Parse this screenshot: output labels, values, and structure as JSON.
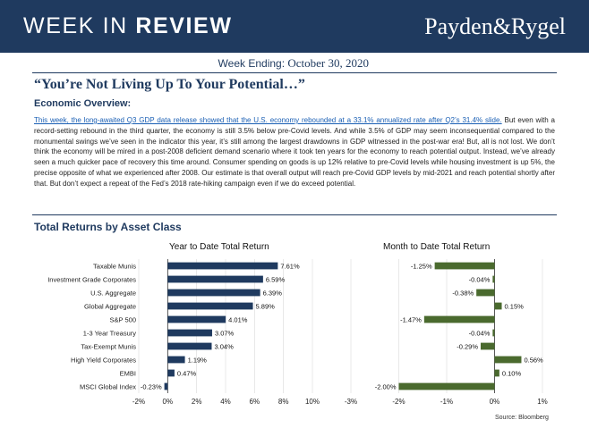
{
  "header": {
    "title_light": "WEEK IN ",
    "title_bold": "REVIEW",
    "brand": "Payden&Rygel"
  },
  "week_ending": {
    "label": "Week Ending: ",
    "date": "October 30, 2020"
  },
  "headline": "“You’re Not Living Up To Your Potential…”",
  "overview": {
    "heading": "Economic Overview:",
    "lead": "This week, the long-awaited Q3 GDP data release showed that the U.S. economy rebounded at a 33.1% annualized rate after Q2’s 31.4% slide.",
    "body": "But even with a record-setting rebound in the third quarter, the economy is still 3.5% below pre-Covid levels. And while 3.5% of GDP may seem inconsequential compared to the monumental swings we’ve seen in the indicator this year, it’s still among the largest drawdowns in GDP witnessed in the post-war era! But, all is not lost. We don’t think the economy will be mired in a post-2008 deficient demand scenario where it took ten years for the economy to reach potential output. Instead, we’ve already seen a much quicker pace of recovery this time around. Consumer spending on goods is up 12% relative to pre-Covid levels while housing investment is up 5%, the precise opposite of what we experienced after 2008. Our estimate is that overall output will reach pre-Covid GDP levels by mid-2021 and reach potential shortly after that. But don’t expect a repeat of the Fed’s 2018 rate-hiking campaign even if we do exceed potential."
  },
  "returns_heading": "Total Returns by Asset Class",
  "source": "Source: Bloomberg",
  "colors": {
    "navy": "#1f3a5f",
    "green": "#4a6a2e"
  },
  "chart_data": [
    {
      "type": "bar",
      "orientation": "horizontal",
      "title": "Year to Date Total Return",
      "categories": [
        "Taxable Munis",
        "Investment Grade Corporates",
        "U.S. Aggregate",
        "Global Aggregate",
        "S&P 500",
        "1-3 Year Treasury",
        "Tax-Exempt Munis",
        "High Yield Corporates",
        "EMBI",
        "MSCI Global Index"
      ],
      "values": [
        7.61,
        6.59,
        6.39,
        5.89,
        4.01,
        3.07,
        3.04,
        1.19,
        0.47,
        -0.23
      ],
      "labels": [
        "7.61%",
        "6.59%",
        "6.39%",
        "5.89%",
        "4.01%",
        "3.07%",
        "3.04%",
        "1.19%",
        "0.47%",
        "-0.23%"
      ],
      "xlim": [
        -2,
        10
      ],
      "ticks": [
        "-2%",
        "0%",
        "2%",
        "4%",
        "6%",
        "8%",
        "10%"
      ],
      "color": "#1f3a5f"
    },
    {
      "type": "bar",
      "orientation": "horizontal",
      "title": "Month to Date Total Return",
      "categories": [
        "Taxable Munis",
        "Investment Grade Corporates",
        "U.S. Aggregate",
        "Global Aggregate",
        "S&P 500",
        "1-3 Year Treasury",
        "Tax-Exempt Munis",
        "High Yield Corporates",
        "EMBI",
        "MSCI Global Index"
      ],
      "values": [
        -1.25,
        -0.04,
        -0.38,
        0.15,
        -1.47,
        -0.04,
        -0.29,
        0.56,
        0.1,
        -2.0
      ],
      "labels": [
        "-1.25%",
        "-0.04%",
        "-0.38%",
        "0.15%",
        "-1.47%",
        "-0.04%",
        "-0.29%",
        "0.56%",
        "0.10%",
        "-2.00%"
      ],
      "xlim": [
        -3,
        1
      ],
      "ticks": [
        "-3%",
        "-2%",
        "-1%",
        "0%",
        "1%"
      ],
      "color": "#4a6a2e"
    }
  ]
}
